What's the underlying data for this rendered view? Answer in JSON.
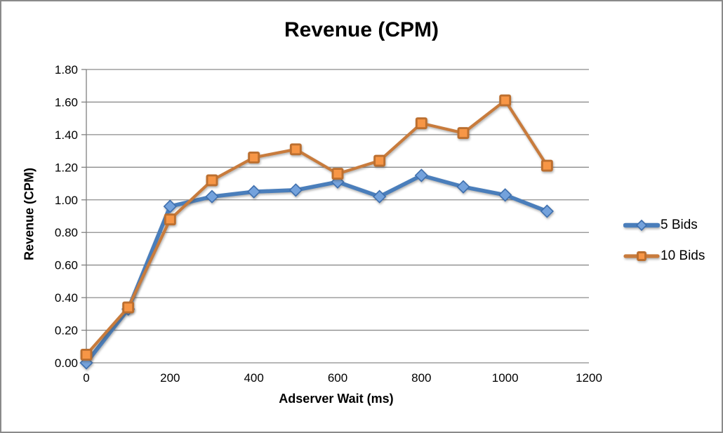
{
  "frame": {
    "background": "#FFFFFF",
    "border_color": "#8A8A8A"
  },
  "chart_data": {
    "type": "line",
    "title": "Revenue (CPM)",
    "xlabel": "Adserver Wait (ms)",
    "ylabel": "Revenue (CPM)",
    "x": [
      0,
      100,
      200,
      300,
      400,
      500,
      600,
      700,
      800,
      900,
      1000,
      1100
    ],
    "series": [
      {
        "name": "5 Bids",
        "marker": "diamond",
        "line_color": "#4A7EBB",
        "marker_fill": "#74A2DC",
        "marker_stroke": "#3E6FAE",
        "values": [
          0.0,
          0.33,
          0.96,
          1.02,
          1.05,
          1.06,
          1.11,
          1.02,
          1.15,
          1.08,
          1.03,
          0.93
        ]
      },
      {
        "name": "10 Bids",
        "marker": "square",
        "line_color": "#C87B3C",
        "marker_fill": "#F79646",
        "marker_stroke": "#BC6F2F",
        "values": [
          0.05,
          0.34,
          0.88,
          1.12,
          1.26,
          1.31,
          1.16,
          1.24,
          1.47,
          1.41,
          1.61,
          1.21
        ]
      }
    ],
    "xlim": [
      0,
      1200
    ],
    "ylim": [
      0,
      1.8
    ],
    "x_ticks": [
      0,
      200,
      400,
      600,
      800,
      1000,
      1200
    ],
    "y_ticks": [
      0.0,
      0.2,
      0.4,
      0.6,
      0.8,
      1.0,
      1.2,
      1.4,
      1.6,
      1.8
    ],
    "y_tick_decimals": 2,
    "grid": true,
    "legend_position": "right",
    "grid_color": "#8C8C8C",
    "axis_color": "#7F7F7F",
    "text_color": "#000000"
  }
}
